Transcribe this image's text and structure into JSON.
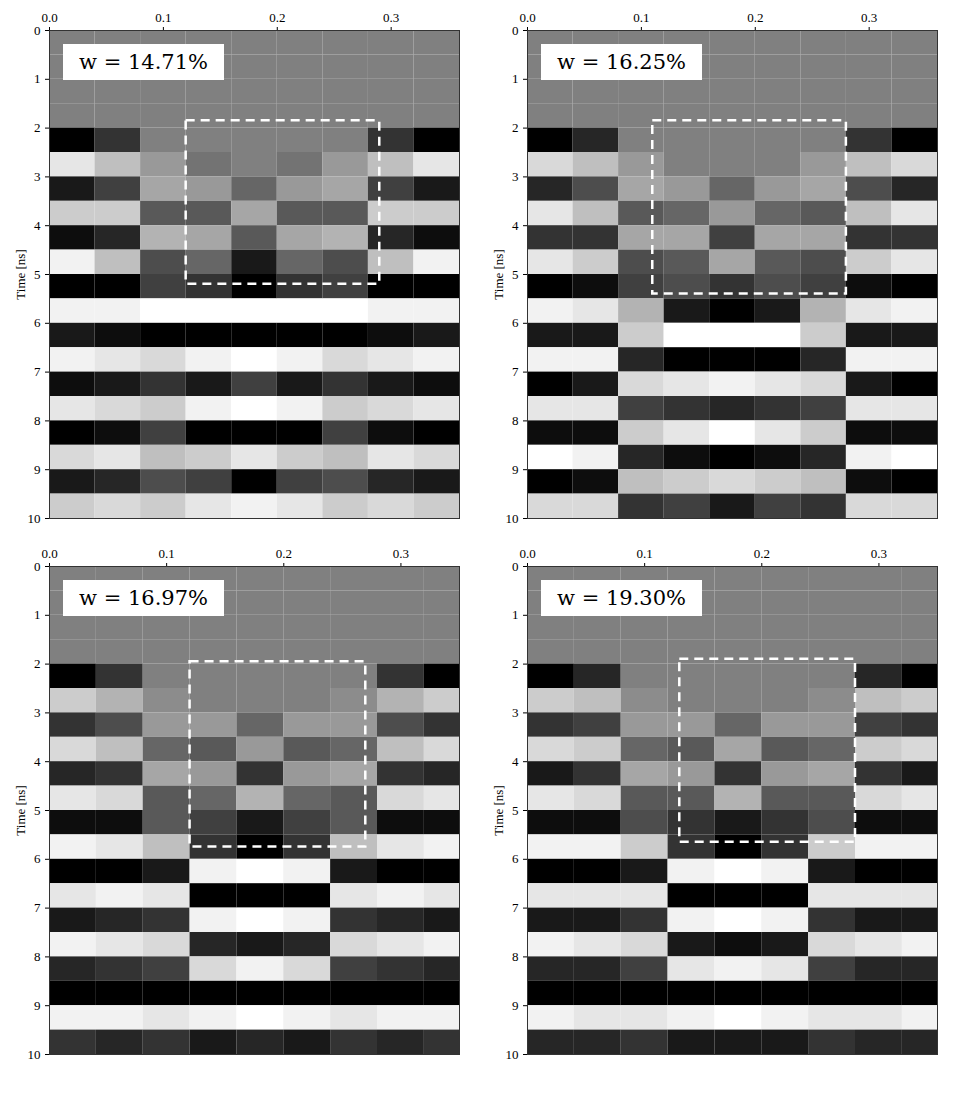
{
  "chart_data": [
    {
      "type": "heatmap",
      "annotation": "w = 14.71%",
      "xlim": [
        0,
        0.36
      ],
      "xticks": [
        {
          "value": 0,
          "label": "0.0"
        },
        0.1,
        0.2,
        0.3
      ],
      "ylabel": "Time [ns]",
      "ylim": [
        0,
        10
      ],
      "yticks": [
        0,
        1,
        2,
        3,
        4,
        5,
        6,
        7,
        8,
        9,
        10
      ],
      "xbins": [
        0,
        0.04,
        0.08,
        0.12,
        0.16,
        0.2,
        0.24,
        0.28,
        0.32,
        0.36
      ],
      "ybins": [
        0,
        0.5,
        1,
        1.5,
        2,
        2.5,
        3,
        3.5,
        4,
        4.5,
        5,
        5.5,
        6,
        6.5,
        7,
        7.5,
        8,
        8.5,
        9,
        9.5,
        10
      ],
      "value_range": [
        -1,
        1
      ],
      "cells": [
        [
          0,
          0,
          0,
          0,
          0,
          0,
          0,
          0,
          0
        ],
        [
          0,
          0,
          0,
          0,
          0,
          0,
          0,
          0,
          0
        ],
        [
          0,
          0,
          0,
          0,
          0,
          0,
          0,
          0,
          0
        ],
        [
          0,
          0,
          0,
          0,
          0,
          0,
          0,
          0,
          0
        ],
        [
          -1,
          -0.6,
          0,
          0,
          0,
          0,
          0,
          -0.6,
          -1
        ],
        [
          0.8,
          0.5,
          0.2,
          -0.1,
          0,
          -0.1,
          0.2,
          0.5,
          0.8
        ],
        [
          -0.8,
          -0.5,
          0.3,
          0.2,
          -0.2,
          0.2,
          0.3,
          -0.5,
          -0.8
        ],
        [
          0.6,
          0.6,
          -0.3,
          -0.3,
          0.3,
          -0.3,
          -0.3,
          0.6,
          0.6
        ],
        [
          -0.9,
          -0.7,
          0.4,
          0.3,
          -0.3,
          0.3,
          0.4,
          -0.7,
          -0.9
        ],
        [
          0.9,
          0.5,
          -0.4,
          -0.2,
          -0.8,
          -0.2,
          -0.4,
          0.5,
          0.9
        ],
        [
          -1,
          -1,
          -0.5,
          -0.6,
          -1,
          -0.6,
          -0.5,
          -1,
          -1
        ],
        [
          0.9,
          0.9,
          1,
          1,
          1,
          1,
          1,
          0.9,
          0.9
        ],
        [
          -0.8,
          -0.9,
          -1,
          -1,
          -1,
          -1,
          -1,
          -0.9,
          -0.8
        ],
        [
          0.9,
          0.8,
          0.7,
          0.9,
          1,
          0.9,
          0.7,
          0.8,
          0.9
        ],
        [
          -0.9,
          -0.8,
          -0.6,
          -0.8,
          -0.5,
          -0.8,
          -0.6,
          -0.8,
          -0.9
        ],
        [
          0.8,
          0.7,
          0.6,
          0.9,
          1,
          0.9,
          0.6,
          0.7,
          0.8
        ],
        [
          -1,
          -0.9,
          -0.5,
          -1,
          -1,
          -1,
          -0.5,
          -0.9,
          -1
        ],
        [
          0.7,
          0.8,
          0.5,
          0.6,
          0.8,
          0.6,
          0.5,
          0.8,
          0.7
        ],
        [
          -0.8,
          -0.7,
          -0.4,
          -0.5,
          -1,
          -0.5,
          -0.4,
          -0.7,
          -0.8
        ],
        [
          0.6,
          0.7,
          0.6,
          0.8,
          0.9,
          0.8,
          0.6,
          0.7,
          0.6
        ]
      ],
      "box": {
        "x": [
          0.12,
          0.29
        ],
        "y": [
          1.85,
          5.2
        ],
        "line_style": "dashed",
        "color": "#ffffff"
      }
    },
    {
      "type": "heatmap",
      "annotation": "w = 16.25%",
      "xlim": [
        0,
        0.36
      ],
      "xticks": [
        {
          "value": 0,
          "label": "0.0"
        },
        0.1,
        0.2,
        0.3
      ],
      "ylabel": "Time [ns]",
      "ylim": [
        0,
        10
      ],
      "yticks": [
        0,
        1,
        2,
        3,
        4,
        5,
        6,
        7,
        8,
        9,
        10
      ],
      "xbins": [
        0,
        0.04,
        0.08,
        0.12,
        0.16,
        0.2,
        0.24,
        0.28,
        0.32,
        0.36
      ],
      "ybins": [
        0,
        0.5,
        1,
        1.5,
        2,
        2.5,
        3,
        3.5,
        4,
        4.5,
        5,
        5.5,
        6,
        6.5,
        7,
        7.5,
        8,
        8.5,
        9,
        9.5,
        10
      ],
      "value_range": [
        -1,
        1
      ],
      "cells": [
        [
          0,
          0,
          0,
          0,
          0,
          0,
          0,
          0,
          0
        ],
        [
          0,
          0,
          0,
          0,
          0,
          0,
          0,
          0,
          0
        ],
        [
          0,
          0,
          0,
          0,
          0,
          0,
          0,
          0,
          0
        ],
        [
          0,
          0,
          0,
          0,
          0,
          0,
          0,
          0,
          0
        ],
        [
          -1,
          -0.7,
          0,
          0,
          0,
          0,
          0,
          -0.6,
          -1
        ],
        [
          0.7,
          0.5,
          0.2,
          0,
          0,
          0,
          0.2,
          0.5,
          0.7
        ],
        [
          -0.7,
          -0.4,
          0.3,
          0.2,
          -0.2,
          0.2,
          0.3,
          -0.4,
          -0.7
        ],
        [
          0.8,
          0.5,
          -0.3,
          -0.2,
          0.2,
          -0.2,
          -0.3,
          0.5,
          0.8
        ],
        [
          -0.6,
          -0.6,
          0.3,
          0.3,
          -0.5,
          0.3,
          0.3,
          -0.6,
          -0.6
        ],
        [
          0.8,
          0.6,
          -0.4,
          -0.3,
          0.3,
          -0.3,
          -0.4,
          0.6,
          0.8
        ],
        [
          -1,
          -0.9,
          -0.5,
          -0.4,
          -0.6,
          -0.4,
          -0.5,
          -0.9,
          -1
        ],
        [
          0.9,
          0.8,
          0.4,
          -0.8,
          -1,
          -0.8,
          0.4,
          0.8,
          0.9
        ],
        [
          -0.8,
          -0.8,
          0.6,
          1,
          1,
          1,
          0.6,
          -0.8,
          -0.8
        ],
        [
          0.9,
          0.9,
          -0.7,
          -1,
          -1,
          -1,
          -0.7,
          0.9,
          0.9
        ],
        [
          -1,
          -0.8,
          0.7,
          0.8,
          0.9,
          0.8,
          0.7,
          -0.8,
          -1
        ],
        [
          0.8,
          0.8,
          -0.5,
          -0.6,
          -0.7,
          -0.6,
          -0.5,
          0.8,
          0.8
        ],
        [
          -0.9,
          -0.9,
          0.6,
          0.8,
          1,
          0.8,
          0.6,
          -0.9,
          -0.9
        ],
        [
          1,
          0.9,
          -0.7,
          -0.9,
          -1,
          -0.9,
          -0.7,
          0.9,
          1
        ],
        [
          -1,
          -0.9,
          0.5,
          0.6,
          0.7,
          0.6,
          0.5,
          -0.9,
          -1
        ],
        [
          0.7,
          0.7,
          -0.6,
          -0.5,
          -0.8,
          -0.5,
          -0.6,
          0.7,
          0.7
        ]
      ],
      "box": {
        "x": [
          0.11,
          0.28
        ],
        "y": [
          1.85,
          5.4
        ],
        "line_style": "dashed",
        "color": "#ffffff"
      }
    },
    {
      "type": "heatmap",
      "annotation": "w = 16.97%",
      "xlim": [
        0,
        0.35
      ],
      "xticks": [
        {
          "value": 0,
          "label": "0.0"
        },
        0.1,
        0.2,
        0.3
      ],
      "ylabel": "Time [ns]",
      "ylim": [
        0,
        10
      ],
      "yticks": [
        0,
        1,
        2,
        3,
        4,
        5,
        6,
        7,
        8,
        9,
        10
      ],
      "xbins": [
        0,
        0.04,
        0.08,
        0.12,
        0.16,
        0.2,
        0.24,
        0.28,
        0.32,
        0.36
      ],
      "ybins": [
        0,
        0.5,
        1,
        1.5,
        2,
        2.5,
        3,
        3.5,
        4,
        4.5,
        5,
        5.5,
        6,
        6.5,
        7,
        7.5,
        8,
        8.5,
        9,
        9.5,
        10
      ],
      "value_range": [
        -1,
        1
      ],
      "cells": [
        [
          0,
          0,
          0,
          0,
          0,
          0,
          0,
          0,
          0
        ],
        [
          0,
          0,
          0,
          0,
          0,
          0,
          0,
          0,
          0
        ],
        [
          0,
          0,
          0,
          0,
          0,
          0,
          0,
          0,
          0
        ],
        [
          0,
          0,
          0,
          0,
          0,
          0,
          0,
          0,
          0
        ],
        [
          -1,
          -0.6,
          0,
          0,
          0,
          0,
          0,
          -0.6,
          -1
        ],
        [
          0.6,
          0.4,
          0.1,
          0,
          0,
          0,
          0.1,
          0.4,
          0.6
        ],
        [
          -0.6,
          -0.4,
          0.2,
          0.2,
          -0.2,
          0.2,
          0.2,
          -0.4,
          -0.6
        ],
        [
          0.7,
          0.5,
          -0.2,
          -0.3,
          0.2,
          -0.3,
          -0.2,
          0.5,
          0.7
        ],
        [
          -0.7,
          -0.6,
          0.3,
          0.2,
          -0.6,
          0.2,
          0.3,
          -0.6,
          -0.7
        ],
        [
          0.8,
          0.7,
          -0.3,
          -0.2,
          0.4,
          -0.2,
          -0.3,
          0.7,
          0.8
        ],
        [
          -0.9,
          -0.9,
          -0.3,
          -0.5,
          -0.8,
          -0.5,
          -0.3,
          -0.9,
          -0.9
        ],
        [
          0.9,
          0.8,
          0.5,
          -0.6,
          -1,
          -0.6,
          0.5,
          0.8,
          0.9
        ],
        [
          -1,
          -1,
          -0.8,
          0.9,
          1,
          0.9,
          -0.8,
          -1,
          -1
        ],
        [
          0.8,
          0.9,
          0.8,
          -1,
          -1,
          -1,
          0.8,
          0.9,
          0.8
        ],
        [
          -0.8,
          -0.7,
          -0.6,
          0.9,
          1,
          0.9,
          -0.6,
          -0.7,
          -0.8
        ],
        [
          0.9,
          0.8,
          0.7,
          -0.7,
          -0.8,
          -0.7,
          0.7,
          0.8,
          0.9
        ],
        [
          -0.7,
          -0.6,
          -0.5,
          0.7,
          0.9,
          0.7,
          -0.5,
          -0.6,
          -0.7
        ],
        [
          -1,
          -1,
          -1,
          -1,
          -1,
          -1,
          -1,
          -1,
          -1
        ],
        [
          0.9,
          0.9,
          0.8,
          0.9,
          1,
          0.9,
          0.8,
          0.9,
          0.9
        ],
        [
          -0.6,
          -0.7,
          -0.6,
          -0.8,
          -0.7,
          -0.8,
          -0.6,
          -0.7,
          -0.6
        ]
      ],
      "box": {
        "x": [
          0.12,
          0.27
        ],
        "y": [
          1.95,
          5.75
        ],
        "line_style": "dashed",
        "color": "#ffffff"
      }
    },
    {
      "type": "heatmap",
      "annotation": "w = 19.30%",
      "xlim": [
        0,
        0.35
      ],
      "xticks": [
        {
          "value": 0,
          "label": "0.0"
        },
        0.1,
        0.2,
        0.3
      ],
      "ylabel": "Time [ns]",
      "ylim": [
        0,
        10
      ],
      "yticks": [
        0,
        1,
        2,
        3,
        4,
        5,
        6,
        7,
        8,
        9,
        10
      ],
      "xbins": [
        0,
        0.04,
        0.08,
        0.12,
        0.16,
        0.2,
        0.24,
        0.28,
        0.32,
        0.36
      ],
      "ybins": [
        0,
        0.5,
        1,
        1.5,
        2,
        2.5,
        3,
        3.5,
        4,
        4.5,
        5,
        5.5,
        6,
        6.5,
        7,
        7.5,
        8,
        8.5,
        9,
        9.5,
        10
      ],
      "value_range": [
        -1,
        1
      ],
      "cells": [
        [
          0,
          0,
          0,
          0,
          0,
          0,
          0,
          0,
          0
        ],
        [
          0,
          0,
          0,
          0,
          0,
          0,
          0,
          0,
          0
        ],
        [
          0,
          0,
          0,
          0,
          0,
          0,
          0,
          0,
          0
        ],
        [
          0,
          0,
          0,
          0,
          0,
          0,
          0,
          0,
          0
        ],
        [
          -1,
          -0.7,
          0,
          0,
          0,
          0,
          0,
          -0.7,
          -1
        ],
        [
          0.6,
          0.5,
          0.1,
          0,
          0,
          0,
          0.1,
          0.5,
          0.6
        ],
        [
          -0.6,
          -0.5,
          0.2,
          0.2,
          -0.2,
          0.2,
          0.2,
          -0.5,
          -0.6
        ],
        [
          0.7,
          0.6,
          -0.2,
          -0.3,
          0.3,
          -0.3,
          -0.2,
          0.6,
          0.7
        ],
        [
          -0.8,
          -0.6,
          0.3,
          0.2,
          -0.6,
          0.2,
          0.3,
          -0.6,
          -0.8
        ],
        [
          0.8,
          0.7,
          -0.3,
          -0.3,
          0.4,
          -0.3,
          -0.3,
          0.7,
          0.8
        ],
        [
          -0.9,
          -0.9,
          -0.4,
          -0.6,
          -0.8,
          -0.6,
          -0.4,
          -0.9,
          -0.9
        ],
        [
          0.9,
          0.9,
          0.6,
          -0.6,
          -1,
          -0.6,
          0.6,
          0.9,
          0.9
        ],
        [
          -1,
          -1,
          -0.8,
          0.9,
          1,
          0.9,
          -0.8,
          -1,
          -1
        ],
        [
          0.8,
          0.8,
          0.8,
          -1,
          -1,
          -1,
          0.8,
          0.8,
          0.8
        ],
        [
          -0.8,
          -0.8,
          -0.6,
          0.9,
          1,
          0.9,
          -0.6,
          -0.8,
          -0.8
        ],
        [
          0.9,
          0.8,
          0.7,
          -0.8,
          -0.9,
          -0.8,
          0.7,
          0.8,
          0.9
        ],
        [
          -0.7,
          -0.7,
          -0.5,
          0.8,
          0.9,
          0.8,
          -0.5,
          -0.7,
          -0.7
        ],
        [
          -1,
          -1,
          -1,
          -1,
          -1,
          -1,
          -1,
          -1,
          -1
        ],
        [
          0.9,
          0.8,
          0.8,
          0.9,
          1,
          0.9,
          0.8,
          0.8,
          0.9
        ],
        [
          -0.7,
          -0.7,
          -0.6,
          -0.8,
          -0.8,
          -0.8,
          -0.6,
          -0.7,
          -0.7
        ]
      ],
      "box": {
        "x": [
          0.13,
          0.28
        ],
        "y": [
          1.9,
          5.65
        ],
        "line_style": "dashed",
        "color": "#ffffff"
      }
    }
  ]
}
